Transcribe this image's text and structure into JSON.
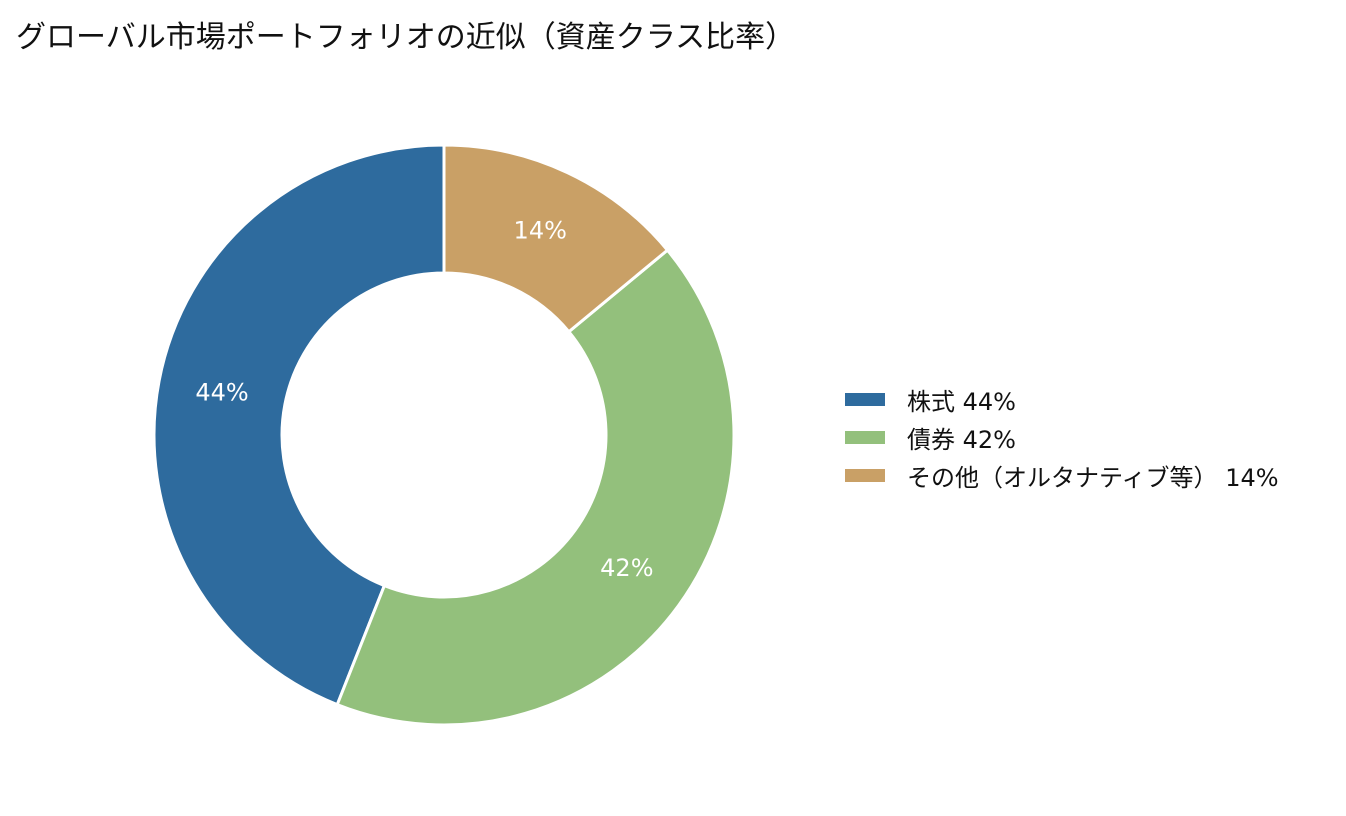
{
  "chart_data": {
    "type": "pie",
    "title": "グローバル市場ポートフォリオの近似（資産クラス比率）",
    "donut": true,
    "legend_position": "right",
    "slices": [
      {
        "label": "株式",
        "value": 44,
        "value_label": "44%",
        "legend_text": "株式  44%",
        "color": "#2e6b9e"
      },
      {
        "label": "債券",
        "value": 42,
        "value_label": "42%",
        "legend_text": "債券  42%",
        "color": "#93c07c"
      },
      {
        "label": "その他（オルタナティブ等）",
        "value": 14,
        "value_label": "14%",
        "legend_text": "その他（オルタナティブ等）  14%",
        "color": "#c9a066"
      }
    ]
  }
}
